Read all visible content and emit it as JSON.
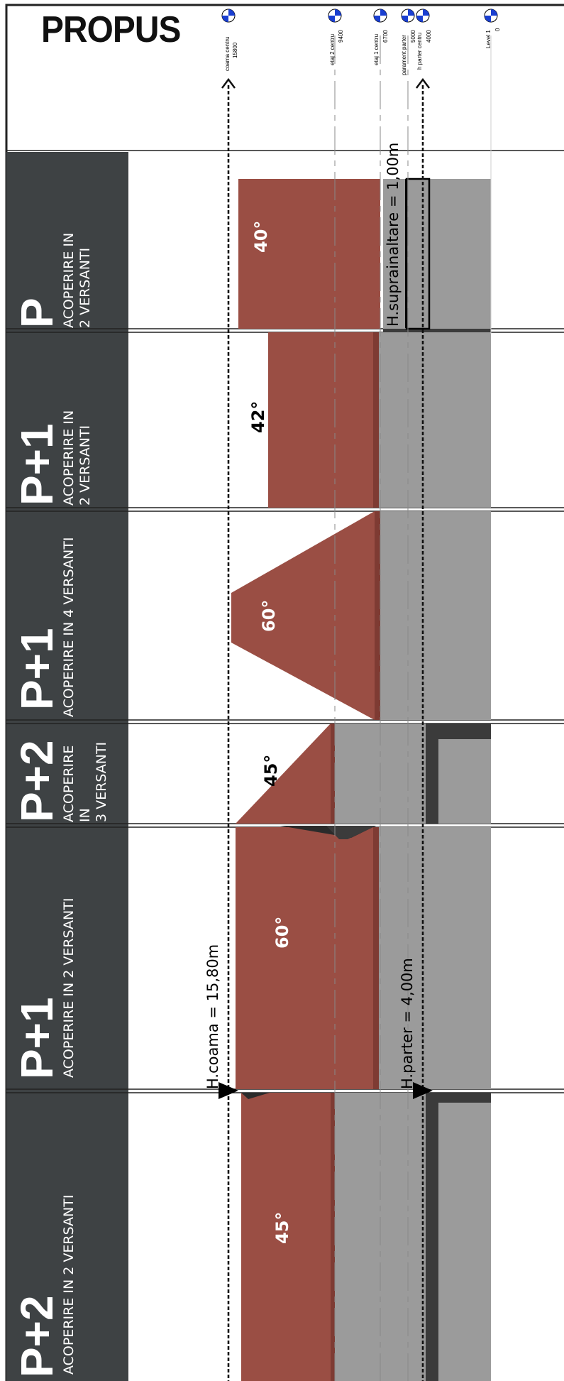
{
  "logo": "PROPUS",
  "levels": [
    {
      "name": "coama centru",
      "value": "15800"
    },
    {
      "name": "etaj 2 centru",
      "value": "9400"
    },
    {
      "name": "etaj 1 centru",
      "value": "6700"
    },
    {
      "name": "parament parter",
      "value": "5000"
    },
    {
      "name": "h parter centru",
      "value": "4000"
    },
    {
      "name": "Level 1",
      "value": "0"
    }
  ],
  "bands": [
    {
      "title": "P",
      "desc1": "ACOPERIRE IN",
      "desc2": "2 VERSANTI",
      "desc3": "",
      "angle": "40°"
    },
    {
      "title": "P+1",
      "desc1": "ACOPERIRE IN",
      "desc2": "2 VERSANTI",
      "desc3": "",
      "angle": "42°"
    },
    {
      "title": "P+1",
      "desc1": "ACOPERIRE IN 4 VERSANTI",
      "desc2": "",
      "desc3": "",
      "angle": "60°"
    },
    {
      "title": "P+2",
      "desc1": "ACOPERIRE",
      "desc2": "IN",
      "desc3": "3 VERSANTI",
      "angle": "45°"
    },
    {
      "title": "P+1",
      "desc1": "ACOPERIRE IN 2 VERSANTI",
      "desc2": "",
      "desc3": "",
      "angle": "60°"
    },
    {
      "title": "P+2",
      "desc1": "ACOPERIRE IN 2 VERSANTI",
      "desc2": "",
      "desc3": "",
      "angle": "45°"
    }
  ],
  "dimensions": {
    "h_coama": "H.coama = 15,80m",
    "h_parter": "H.parter = 4,00m",
    "h_supraináltare": "H.suprainaltare = 1,00m"
  },
  "colors": {
    "dark_panel": "#3e4244",
    "roof": "#9a4e44",
    "roof_shadow": "#7e3b33",
    "wall": "#9b9b9b",
    "wall_dark": "#3b3b3b"
  }
}
